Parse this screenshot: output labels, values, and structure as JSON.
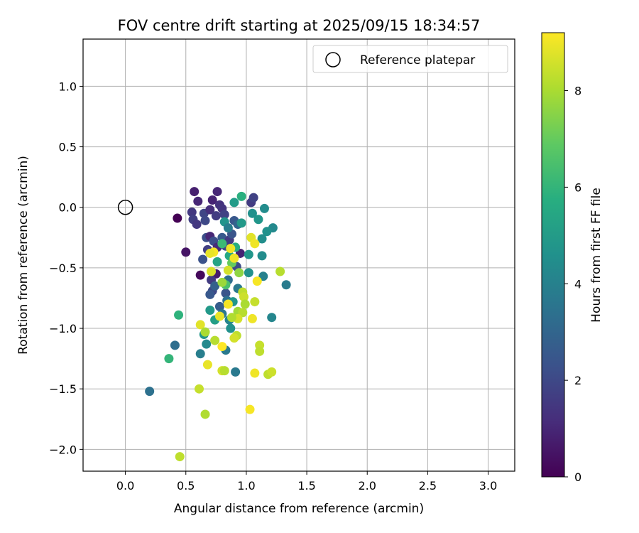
{
  "chart_data": {
    "type": "scatter",
    "title": "FOV centre drift starting at 2025/09/15 18:34:57",
    "xlabel": "Angular distance from reference (arcmin)",
    "ylabel": "Rotation from reference (arcmin)",
    "xlim": [
      -0.35,
      3.22
    ],
    "ylim": [
      -2.18,
      1.39
    ],
    "xticks": [
      0.0,
      0.5,
      1.0,
      1.5,
      2.0,
      2.5,
      3.0
    ],
    "xtick_labels": [
      "0.0",
      "0.5",
      "1.0",
      "1.5",
      "2.0",
      "2.5",
      "3.0"
    ],
    "yticks": [
      1.0,
      0.5,
      0.0,
      -0.5,
      -1.0,
      -1.5,
      -2.0
    ],
    "ytick_labels": [
      "1.0",
      "0.5",
      "0.0",
      "−0.5",
      "−1.0",
      "−1.5",
      "−2.0"
    ],
    "grid": true,
    "legend": {
      "placement": "top-right",
      "entries": [
        "Reference platepar"
      ]
    },
    "reference_point": {
      "x": 0.0,
      "y": 0.0
    },
    "colorbar": {
      "label": "Hours from first FF file",
      "colormap": "viridis",
      "range": [
        0,
        9.2
      ],
      "ticks": [
        0,
        2,
        4,
        6,
        8
      ],
      "tick_labels": [
        "0",
        "2",
        "4",
        "6",
        "8"
      ]
    },
    "points": [
      {
        "x": 0.43,
        "y": -0.09,
        "c": 0.0
      },
      {
        "x": 0.5,
        "y": -0.37,
        "c": 0.5
      },
      {
        "x": 0.62,
        "y": -0.56,
        "c": 0.2
      },
      {
        "x": 0.57,
        "y": 0.13,
        "c": 0.8
      },
      {
        "x": 0.6,
        "y": 0.05,
        "c": 1.0
      },
      {
        "x": 0.55,
        "y": -0.04,
        "c": 1.5
      },
      {
        "x": 0.56,
        "y": -0.1,
        "c": 1.7
      },
      {
        "x": 0.59,
        "y": -0.14,
        "c": 1.5
      },
      {
        "x": 0.65,
        "y": -0.05,
        "c": 1.9
      },
      {
        "x": 0.66,
        "y": -0.11,
        "c": 2.0
      },
      {
        "x": 0.7,
        "y": -0.02,
        "c": 1.2
      },
      {
        "x": 0.72,
        "y": 0.06,
        "c": 0.9
      },
      {
        "x": 0.76,
        "y": 0.13,
        "c": 1.0
      },
      {
        "x": 0.78,
        "y": 0.02,
        "c": 1.3
      },
      {
        "x": 0.75,
        "y": -0.07,
        "c": 1.6
      },
      {
        "x": 0.8,
        "y": -0.01,
        "c": 1.4
      },
      {
        "x": 0.82,
        "y": -0.06,
        "c": 1.8
      },
      {
        "x": 0.67,
        "y": -0.25,
        "c": 2.2
      },
      {
        "x": 0.7,
        "y": -0.24,
        "c": 1.0
      },
      {
        "x": 0.73,
        "y": -0.28,
        "c": 2.2
      },
      {
        "x": 0.68,
        "y": -0.35,
        "c": 1.7
      },
      {
        "x": 0.64,
        "y": -0.43,
        "c": 2.3
      },
      {
        "x": 0.76,
        "y": -0.33,
        "c": 1.1
      },
      {
        "x": 0.8,
        "y": -0.25,
        "c": 2.6
      },
      {
        "x": 0.83,
        "y": -0.32,
        "c": 2.0
      },
      {
        "x": 0.86,
        "y": -0.27,
        "c": 1.6
      },
      {
        "x": 0.88,
        "y": -0.22,
        "c": 2.4
      },
      {
        "x": 0.9,
        "y": -0.11,
        "c": 2.5
      },
      {
        "x": 0.93,
        "y": -0.14,
        "c": 3.0
      },
      {
        "x": 0.95,
        "y": -0.38,
        "c": 0.9
      },
      {
        "x": 0.92,
        "y": -0.49,
        "c": 2.1
      },
      {
        "x": 0.75,
        "y": -0.55,
        "c": 0.7
      },
      {
        "x": 0.71,
        "y": -0.6,
        "c": 1.6
      },
      {
        "x": 0.72,
        "y": -0.69,
        "c": 2.0
      },
      {
        "x": 0.7,
        "y": -0.72,
        "c": 2.5
      },
      {
        "x": 0.74,
        "y": -0.65,
        "c": 2.8
      },
      {
        "x": 0.83,
        "y": -0.71,
        "c": 2.4
      },
      {
        "x": 0.85,
        "y": -0.6,
        "c": 3.3
      },
      {
        "x": 0.78,
        "y": -0.82,
        "c": 2.7
      },
      {
        "x": 0.84,
        "y": -0.77,
        "c": 3.4
      },
      {
        "x": 0.96,
        "y": 0.09,
        "c": 5.8
      },
      {
        "x": 1.04,
        "y": 0.04,
        "c": 1.6
      },
      {
        "x": 1.06,
        "y": 0.08,
        "c": 1.8
      },
      {
        "x": 0.9,
        "y": 0.04,
        "c": 5.0
      },
      {
        "x": 1.05,
        "y": -0.05,
        "c": 4.6
      },
      {
        "x": 1.1,
        "y": -0.1,
        "c": 4.8
      },
      {
        "x": 1.15,
        "y": -0.01,
        "c": 4.4
      },
      {
        "x": 1.22,
        "y": -0.17,
        "c": 4.3
      },
      {
        "x": 1.17,
        "y": -0.2,
        "c": 4.6
      },
      {
        "x": 1.13,
        "y": -0.26,
        "c": 4.5
      },
      {
        "x": 0.96,
        "y": -0.13,
        "c": 4.9
      },
      {
        "x": 0.82,
        "y": -0.12,
        "c": 4.7
      },
      {
        "x": 0.85,
        "y": -0.17,
        "c": 3.9
      },
      {
        "x": 1.02,
        "y": -0.39,
        "c": 4.8
      },
      {
        "x": 1.13,
        "y": -0.4,
        "c": 4.4
      },
      {
        "x": 1.14,
        "y": -0.57,
        "c": 4.0
      },
      {
        "x": 1.02,
        "y": -0.54,
        "c": 4.6
      },
      {
        "x": 1.33,
        "y": -0.64,
        "c": 3.8
      },
      {
        "x": 1.21,
        "y": -0.91,
        "c": 4.2
      },
      {
        "x": 0.93,
        "y": -0.67,
        "c": 3.7
      },
      {
        "x": 0.89,
        "y": -0.78,
        "c": 4.8
      },
      {
        "x": 0.8,
        "y": -0.88,
        "c": 3.6
      },
      {
        "x": 0.86,
        "y": -0.93,
        "c": 4.1
      },
      {
        "x": 0.87,
        "y": -1.0,
        "c": 4.6
      },
      {
        "x": 0.74,
        "y": -0.93,
        "c": 5.1
      },
      {
        "x": 0.7,
        "y": -0.85,
        "c": 4.9
      },
      {
        "x": 0.83,
        "y": -1.18,
        "c": 3.7
      },
      {
        "x": 0.65,
        "y": -1.05,
        "c": 4.8
      },
      {
        "x": 0.67,
        "y": -1.13,
        "c": 4.3
      },
      {
        "x": 0.62,
        "y": -1.21,
        "c": 3.9
      },
      {
        "x": 0.91,
        "y": -1.36,
        "c": 3.7
      },
      {
        "x": 0.41,
        "y": -1.14,
        "c": 3.3
      },
      {
        "x": 0.2,
        "y": -1.52,
        "c": 3.4
      },
      {
        "x": 0.36,
        "y": -1.25,
        "c": 6.0
      },
      {
        "x": 0.44,
        "y": -0.89,
        "c": 5.9
      },
      {
        "x": 0.76,
        "y": -0.45,
        "c": 5.3
      },
      {
        "x": 0.8,
        "y": -0.3,
        "c": 6.2
      },
      {
        "x": 0.86,
        "y": -0.4,
        "c": 5.5
      },
      {
        "x": 0.88,
        "y": -0.46,
        "c": 7.0
      },
      {
        "x": 0.91,
        "y": -0.33,
        "c": 5.7
      },
      {
        "x": 0.83,
        "y": -0.64,
        "c": 6.5
      },
      {
        "x": 0.8,
        "y": -0.62,
        "c": 7.8
      },
      {
        "x": 0.87,
        "y": -0.34,
        "c": 9.0
      },
      {
        "x": 0.85,
        "y": -0.52,
        "c": 8.6
      },
      {
        "x": 0.71,
        "y": -0.53,
        "c": 8.7
      },
      {
        "x": 0.73,
        "y": -0.37,
        "c": 9.1
      },
      {
        "x": 0.7,
        "y": -0.38,
        "c": 8.9
      },
      {
        "x": 0.9,
        "y": -0.42,
        "c": 9.0
      },
      {
        "x": 0.94,
        "y": -0.54,
        "c": 7.6
      },
      {
        "x": 1.04,
        "y": -0.25,
        "c": 8.8
      },
      {
        "x": 1.07,
        "y": -0.3,
        "c": 9.0
      },
      {
        "x": 1.09,
        "y": -0.61,
        "c": 9.1
      },
      {
        "x": 1.28,
        "y": -0.53,
        "c": 8.2
      },
      {
        "x": 0.97,
        "y": -0.7,
        "c": 8.3
      },
      {
        "x": 0.98,
        "y": -0.74,
        "c": 8.5
      },
      {
        "x": 0.99,
        "y": -0.8,
        "c": 8.0
      },
      {
        "x": 1.07,
        "y": -0.78,
        "c": 8.4
      },
      {
        "x": 0.93,
        "y": -0.86,
        "c": 7.9
      },
      {
        "x": 0.97,
        "y": -0.87,
        "c": 8.2
      },
      {
        "x": 0.93,
        "y": -0.92,
        "c": 8.6
      },
      {
        "x": 0.88,
        "y": -0.91,
        "c": 8.1
      },
      {
        "x": 1.05,
        "y": -0.92,
        "c": 9.0
      },
      {
        "x": 0.85,
        "y": -0.8,
        "c": 9.1
      },
      {
        "x": 0.78,
        "y": -0.9,
        "c": 8.9
      },
      {
        "x": 0.62,
        "y": -0.97,
        "c": 8.8
      },
      {
        "x": 0.66,
        "y": -1.03,
        "c": 8.0
      },
      {
        "x": 0.74,
        "y": -1.1,
        "c": 8.2
      },
      {
        "x": 0.8,
        "y": -1.15,
        "c": 9.2
      },
      {
        "x": 0.92,
        "y": -1.06,
        "c": 8.3
      },
      {
        "x": 0.9,
        "y": -1.08,
        "c": 8.6
      },
      {
        "x": 0.68,
        "y": -1.3,
        "c": 8.9
      },
      {
        "x": 0.8,
        "y": -1.35,
        "c": 8.6
      },
      {
        "x": 0.82,
        "y": -1.35,
        "c": 8.2
      },
      {
        "x": 1.11,
        "y": -1.14,
        "c": 8.4
      },
      {
        "x": 1.11,
        "y": -1.19,
        "c": 8.3
      },
      {
        "x": 1.07,
        "y": -1.37,
        "c": 9.0
      },
      {
        "x": 1.18,
        "y": -1.38,
        "c": 8.3
      },
      {
        "x": 1.21,
        "y": -1.36,
        "c": 8.5
      },
      {
        "x": 0.61,
        "y": -1.5,
        "c": 8.4
      },
      {
        "x": 0.66,
        "y": -1.71,
        "c": 8.1
      },
      {
        "x": 1.03,
        "y": -1.67,
        "c": 9.1
      },
      {
        "x": 0.45,
        "y": -2.06,
        "c": 8.3
      }
    ]
  }
}
